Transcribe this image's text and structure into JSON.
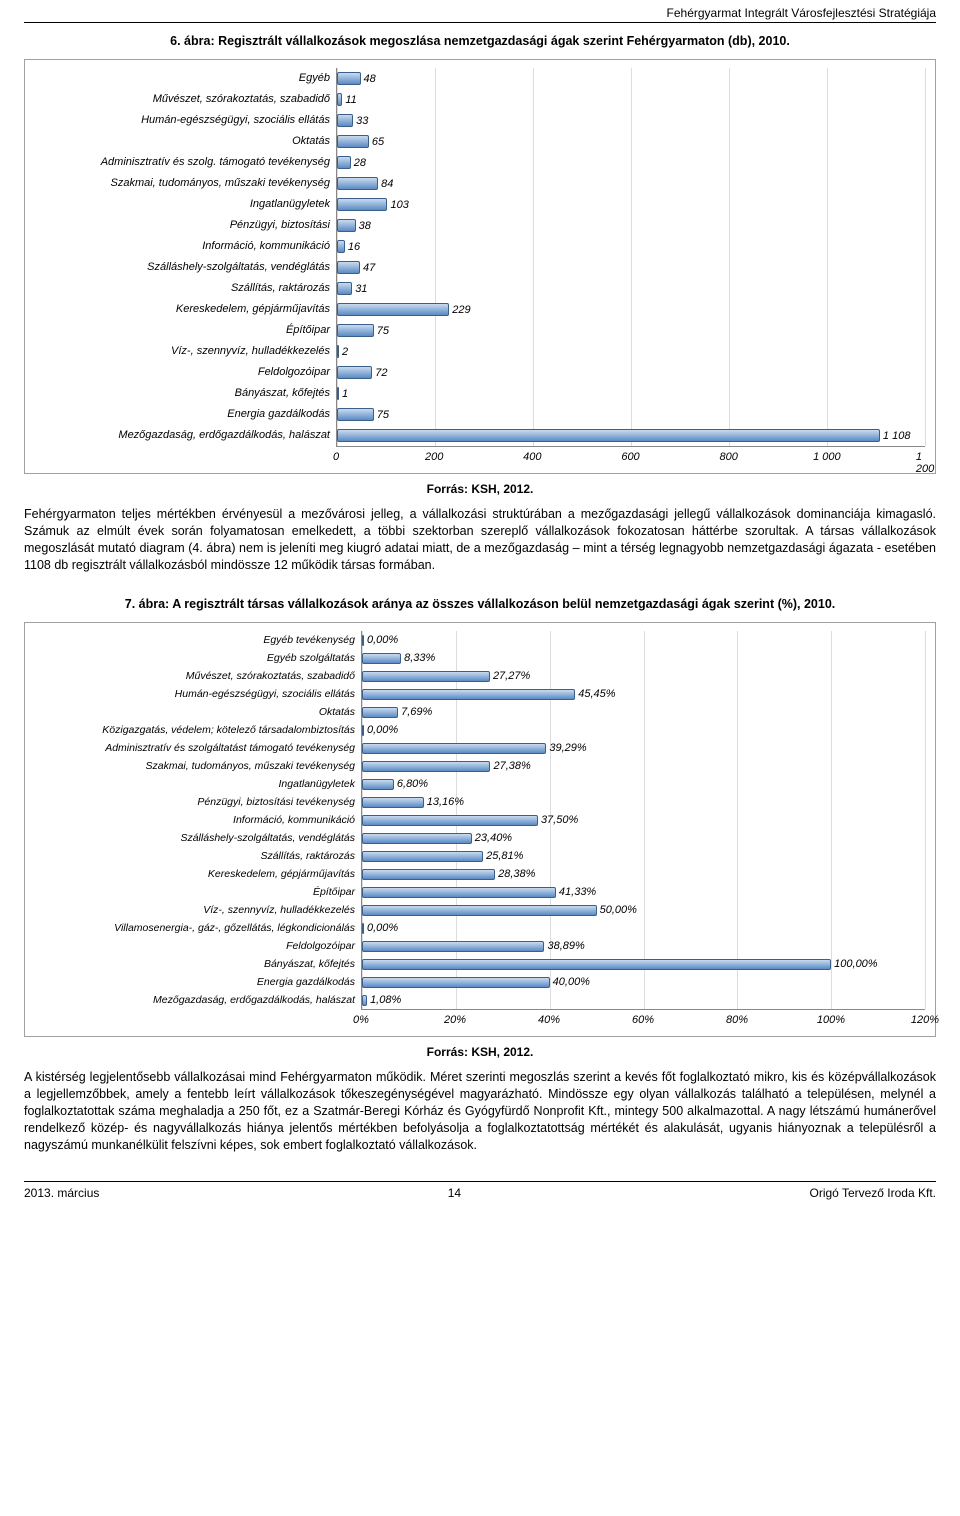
{
  "header": {
    "title": "Fehérgyarmat Integrált Városfejlesztési Stratégiája"
  },
  "footer": {
    "date": "2013. március",
    "page": "14",
    "author": "Origó Tervező Iroda Kft."
  },
  "chart1": {
    "title": "6.   ábra: Regisztrált vállalkozások megoszlása nemzetgazdasági ágak szerint Fehérgyarmaton (db), 2010.",
    "source": "Forrás: KSH, 2012.",
    "type": "bar-horizontal",
    "bar_fill_top": "#c9dbef",
    "bar_fill_bottom": "#5b8bc4",
    "bar_border": "#3a5f8a",
    "grid_color": "#dddddd",
    "axis_color": "#888888",
    "background": "#ffffff",
    "label_fontstyle": "italic",
    "label_fontsize": 11,
    "xmin": 0,
    "xmax": 1200,
    "xtick_step": 200,
    "xticks": [
      "0",
      "200",
      "400",
      "600",
      "800",
      "1 000",
      "1 200"
    ],
    "labels": [
      "Egyéb",
      "Művészet, szórakoztatás, szabadidő",
      "Humán-egészségügyi, szociális ellátás",
      "Oktatás",
      "Adminisztratív és szolg. támogató tevékenység",
      "Szakmai, tudományos, műszaki tevékenység",
      "Ingatlanügyletek",
      "Pénzügyi, biztosítási",
      "Információ, kommunikáció",
      "Szálláshely-szolgáltatás, vendéglátás",
      "Szállítás, raktározás",
      "Kereskedelem, gépjárműjavítás",
      "Építőipar",
      "Víz-, szennyvíz, hulladékkezelés",
      "Feldolgozóipar",
      "Bányászat, kőfejtés",
      "Energia gazdálkodás",
      "Mezőgazdaság, erdőgazdálkodás, halászat"
    ],
    "values": [
      48,
      11,
      33,
      65,
      28,
      84,
      103,
      38,
      16,
      47,
      31,
      229,
      75,
      2,
      72,
      1,
      75,
      1108
    ],
    "value_labels": [
      "48",
      "11",
      "33",
      "65",
      "28",
      "84",
      "103",
      "38",
      "16",
      "47",
      "31",
      "229",
      "75",
      "2",
      "72",
      "1",
      "75",
      "1 108"
    ]
  },
  "para1": "Fehérgyarmaton teljes mértékben érvényesül a mezővárosi jelleg, a vállalkozási struktúrában a mezőgazdasági jellegű vállalkozások dominanciája kimagasló. Számuk az elmúlt évek során folyamatosan emelkedett, a többi szektorban szereplő vállalkozások fokozatosan háttérbe szorultak. A társas vállalkozások megoszlását mutató diagram (4. ábra) nem is jeleníti meg kiugró adatai miatt, de a mezőgazdaság – mint a térség legnagyobb nemzetgazdasági ágazata - esetében 1108 db regisztrált vállalkozásból mindössze 12 működik társas formában.",
  "chart2": {
    "title": "7.   ábra: A regisztrált társas vállalkozások aránya az összes vállalkozáson belül nemzetgazdasági ágak szerint (%), 2010.",
    "source": "Forrás: KSH, 2012.",
    "type": "bar-horizontal",
    "bar_fill_top": "#c9dbef",
    "bar_fill_bottom": "#5b8bc4",
    "bar_border": "#3a5f8a",
    "grid_color": "#dddddd",
    "axis_color": "#888888",
    "background": "#ffffff",
    "label_fontstyle": "italic",
    "label_fontsize": 10.5,
    "xmin": 0,
    "xmax": 120,
    "xtick_step": 20,
    "xticks": [
      "0%",
      "20%",
      "40%",
      "60%",
      "80%",
      "100%",
      "120%"
    ],
    "labels": [
      "Egyéb tevékenység",
      "Egyéb szolgáltatás",
      "Művészet, szórakoztatás, szabadidő",
      "Humán-egészségügyi, szociális ellátás",
      "Oktatás",
      "Közigazgatás, védelem; kötelező társadalombiztosítás",
      "Adminisztratív és szolgáltatást támogató tevékenység",
      "Szakmai, tudományos, műszaki tevékenység",
      "Ingatlanügyletek",
      "Pénzügyi, biztosítási tevékenység",
      "Információ, kommunikáció",
      "Szálláshely-szolgáltatás, vendéglátás",
      "Szállítás, raktározás",
      "Kereskedelem, gépjárműjavítás",
      "Építőipar",
      "Víz-, szennyvíz, hulladékkezelés",
      "Villamosenergia-, gáz-, gőzellátás, légkondicionálás",
      "Feldolgozóipar",
      "Bányászat, kőfejtés",
      "Energia gazdálkodás",
      "Mezőgazdaság, erdőgazdálkodás, halászat"
    ],
    "values": [
      0,
      8.33,
      27.27,
      45.45,
      7.69,
      0,
      39.29,
      27.38,
      6.8,
      13.16,
      37.5,
      23.4,
      25.81,
      28.38,
      41.33,
      50.0,
      0,
      38.89,
      100.0,
      40.0,
      1.08
    ],
    "value_labels": [
      "0,00%",
      "8,33%",
      "27,27%",
      "45,45%",
      "7,69%",
      "0,00%",
      "39,29%",
      "27,38%",
      "6,80%",
      "13,16%",
      "37,50%",
      "23,40%",
      "25,81%",
      "28,38%",
      "41,33%",
      "50,00%",
      "0,00%",
      "38,89%",
      "100,00%",
      "40,00%",
      "1,08%"
    ]
  },
  "para2": "A kistérség legjelentősebb vállalkozásai mind Fehérgyarmaton működik. Méret szerinti megoszlás szerint a kevés főt foglalkoztató mikro, kis és középvállalkozások a legjellemzőbbek, amely a fentebb leírt vállalkozások tőkeszegénységével magyarázható. Mindössze egy olyan vállalkozás található a településen, melynél a foglalkoztatottak száma meghaladja a 250 főt, ez a Szatmár-Beregi Kórház és Gyógyfürdő Nonprofit Kft., mintegy 500 alkalmazottal. A nagy létszámú humánerővel rendelkező közép- és nagyvállalkozás hiánya jelentős mértékben befolyásolja a foglalkoztatottság mértékét és alakulását, ugyanis hiányoznak a településről a nagyszámú munkanélkülit felszívni képes, sok embert foglalkoztató vállalkozások."
}
